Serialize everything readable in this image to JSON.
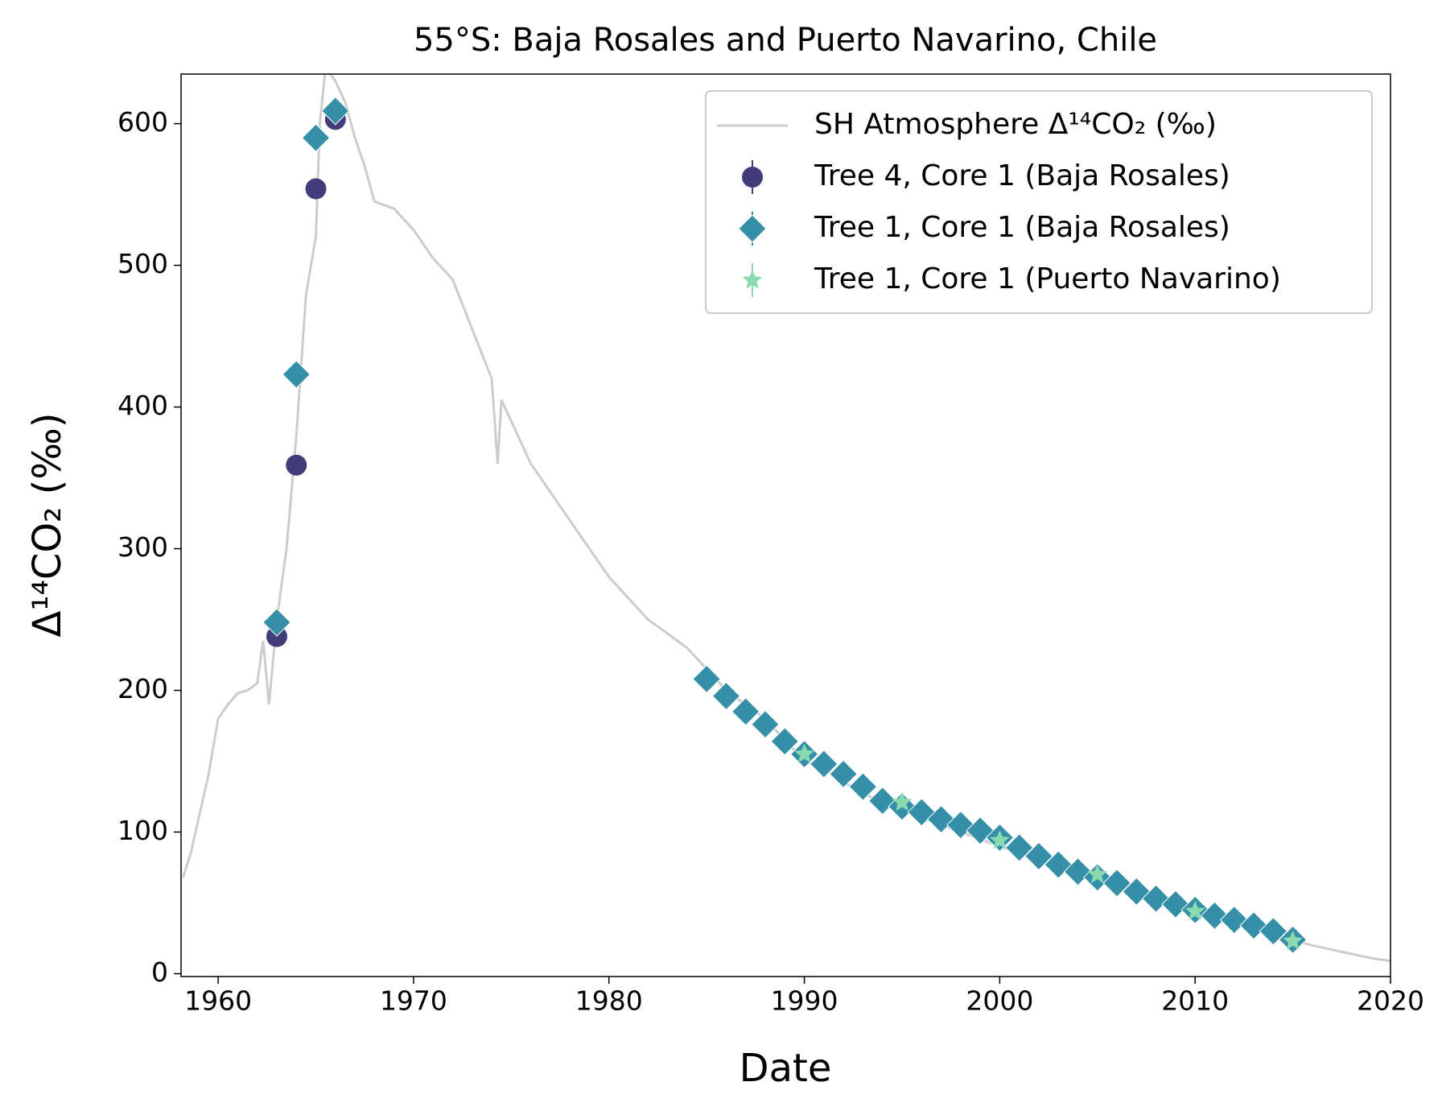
{
  "chart_data": {
    "type": "line",
    "title": "55°S: Baja Rosales and Puerto Navarino, Chile",
    "xlabel": "Date",
    "ylabel": "Δ¹⁴CO₂ (‰)",
    "xlim": [
      1958.1,
      2020
    ],
    "ylim": [
      -2,
      635
    ],
    "xticks": [
      1960,
      1970,
      1980,
      1990,
      2000,
      2010,
      2020
    ],
    "yticks": [
      0,
      100,
      200,
      300,
      400,
      500,
      600
    ],
    "legend": "upper right",
    "series": [
      {
        "name": "SH Atmosphere Δ¹⁴CO₂ (‰)",
        "marker": "line",
        "color": "#cccccc",
        "x": [
          1958.2,
          1958.6,
          1959,
          1959.5,
          1960,
          1960.5,
          1961,
          1961.5,
          1962,
          1962.3,
          1962.6,
          1963,
          1963.5,
          1964,
          1964.5,
          1965,
          1965.2,
          1965.5,
          1966,
          1966.5,
          1967,
          1967.5,
          1968,
          1969,
          1970,
          1971,
          1972,
          1973,
          1974,
          1974.3,
          1974.5,
          1975,
          1976,
          1977,
          1978,
          1979,
          1980,
          1981,
          1982,
          1983,
          1984,
          1985,
          1986,
          1987,
          1988,
          1989,
          1990,
          1991,
          1992,
          1993,
          1994,
          1995,
          1996,
          1997,
          1998,
          1999,
          2000,
          2001,
          2002,
          2003,
          2004,
          2005,
          2006,
          2007,
          2008,
          2009,
          2010,
          2011,
          2012,
          2013,
          2014,
          2015,
          2016,
          2017,
          2018,
          2019,
          2020
        ],
        "values": [
          68,
          85,
          110,
          140,
          180,
          190,
          198,
          200,
          205,
          235,
          190,
          250,
          300,
          380,
          480,
          520,
          600,
          640,
          630,
          615,
          590,
          570,
          545,
          540,
          525,
          505,
          490,
          455,
          420,
          360,
          405,
          390,
          360,
          340,
          320,
          300,
          280,
          265,
          250,
          240,
          230,
          215,
          200,
          190,
          180,
          165,
          150,
          145,
          135,
          128,
          120,
          115,
          110,
          105,
          100,
          95,
          90,
          85,
          80,
          75,
          70,
          65,
          60,
          55,
          50,
          46,
          42,
          38,
          35,
          32,
          28,
          24,
          20,
          17,
          14,
          11,
          9
        ]
      },
      {
        "name": "Tree 4, Core 1 (Baja Rosales)",
        "marker": "circle",
        "color": "#413d7b",
        "x": [
          1963,
          1964,
          1965,
          1966
        ],
        "values": [
          238,
          359,
          554,
          603
        ]
      },
      {
        "name": "Tree 1, Core 1 (Baja Rosales)",
        "marker": "diamond",
        "color": "#348fa7",
        "x": [
          1963,
          1964,
          1965,
          1966,
          1985,
          1986,
          1987,
          1988,
          1989,
          1990,
          1991,
          1992,
          1993,
          1994,
          1995,
          1996,
          1997,
          1998,
          1999,
          2000,
          2001,
          2002,
          2003,
          2004,
          2005,
          2006,
          2007,
          2008,
          2009,
          2010,
          2011,
          2012,
          2013,
          2014,
          2015
        ],
        "values": [
          248,
          423,
          590,
          609,
          208,
          196,
          185,
          176,
          164,
          155,
          148,
          141,
          132,
          122,
          118,
          114,
          109,
          105,
          101,
          96,
          89,
          83,
          77,
          72,
          68,
          64,
          58,
          53,
          49,
          45,
          41,
          38,
          34,
          30,
          24
        ]
      },
      {
        "name": "Tree 1, Core 1 (Puerto Navarino)",
        "marker": "star",
        "color": "#8ad9b1",
        "x": [
          1990,
          1995,
          2000,
          2005,
          2010,
          2015
        ],
        "values": [
          155,
          121,
          94,
          70,
          44,
          23
        ]
      }
    ]
  }
}
